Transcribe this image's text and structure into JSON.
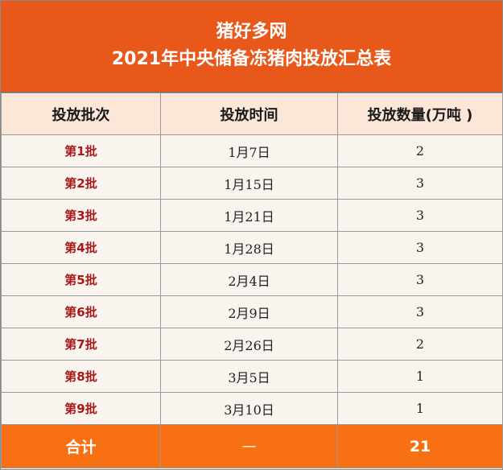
{
  "header": {
    "site": "猪好多网",
    "title": "2021年中央储备冻猪肉投放汇总表"
  },
  "columns": [
    "投放批次",
    "投放时间",
    "投放数量(万吨 )"
  ],
  "rows": [
    {
      "batch": "第1批",
      "date": "1月7日",
      "qty": "2"
    },
    {
      "batch": "第2批",
      "date": "1月15日",
      "qty": "3"
    },
    {
      "batch": "第3批",
      "date": "1月21日",
      "qty": "3"
    },
    {
      "batch": "第4批",
      "date": "1月28日",
      "qty": "3"
    },
    {
      "batch": "第5批",
      "date": "2月4日",
      "qty": "3"
    },
    {
      "batch": "第6批",
      "date": "2月9日",
      "qty": "3"
    },
    {
      "batch": "第7批",
      "date": "2月26日",
      "qty": "2"
    },
    {
      "batch": "第8批",
      "date": "3月5日",
      "qty": "1"
    },
    {
      "batch": "第9批",
      "date": "3月10日",
      "qty": "1"
    }
  ],
  "total": {
    "label": "合计",
    "date": "—",
    "qty": "21"
  },
  "colors": {
    "banner": "#e8581a",
    "footer": "#f77114",
    "batch_text": "#a81818",
    "header_bg": "#fbe6d8"
  }
}
